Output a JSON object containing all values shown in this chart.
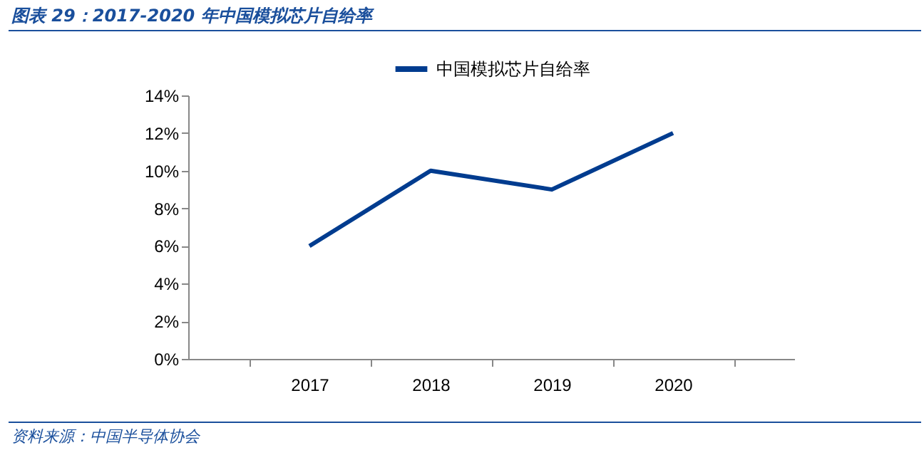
{
  "chart_data": {
    "type": "line",
    "title": "图表 29：2017-2020 年中国模拟芯片自给率",
    "categories": [
      "2017",
      "2018",
      "2019",
      "2020"
    ],
    "series": [
      {
        "name": "中国模拟芯片自给率",
        "color": "#003c8f",
        "values": [
          6,
          10,
          9,
          12
        ]
      }
    ],
    "ylim": [
      0,
      14
    ],
    "yticks": [
      {
        "value": 0,
        "label": "0%"
      },
      {
        "value": 2,
        "label": "2%"
      },
      {
        "value": 4,
        "label": "4%"
      },
      {
        "value": 6,
        "label": "6%"
      },
      {
        "value": 8,
        "label": "8%"
      },
      {
        "value": 10,
        "label": "10%"
      },
      {
        "value": 12,
        "label": "12%"
      },
      {
        "value": 14,
        "label": "14%"
      }
    ],
    "legend": "top",
    "annotations": [
      "资料来源：中国半导体协会"
    ]
  }
}
